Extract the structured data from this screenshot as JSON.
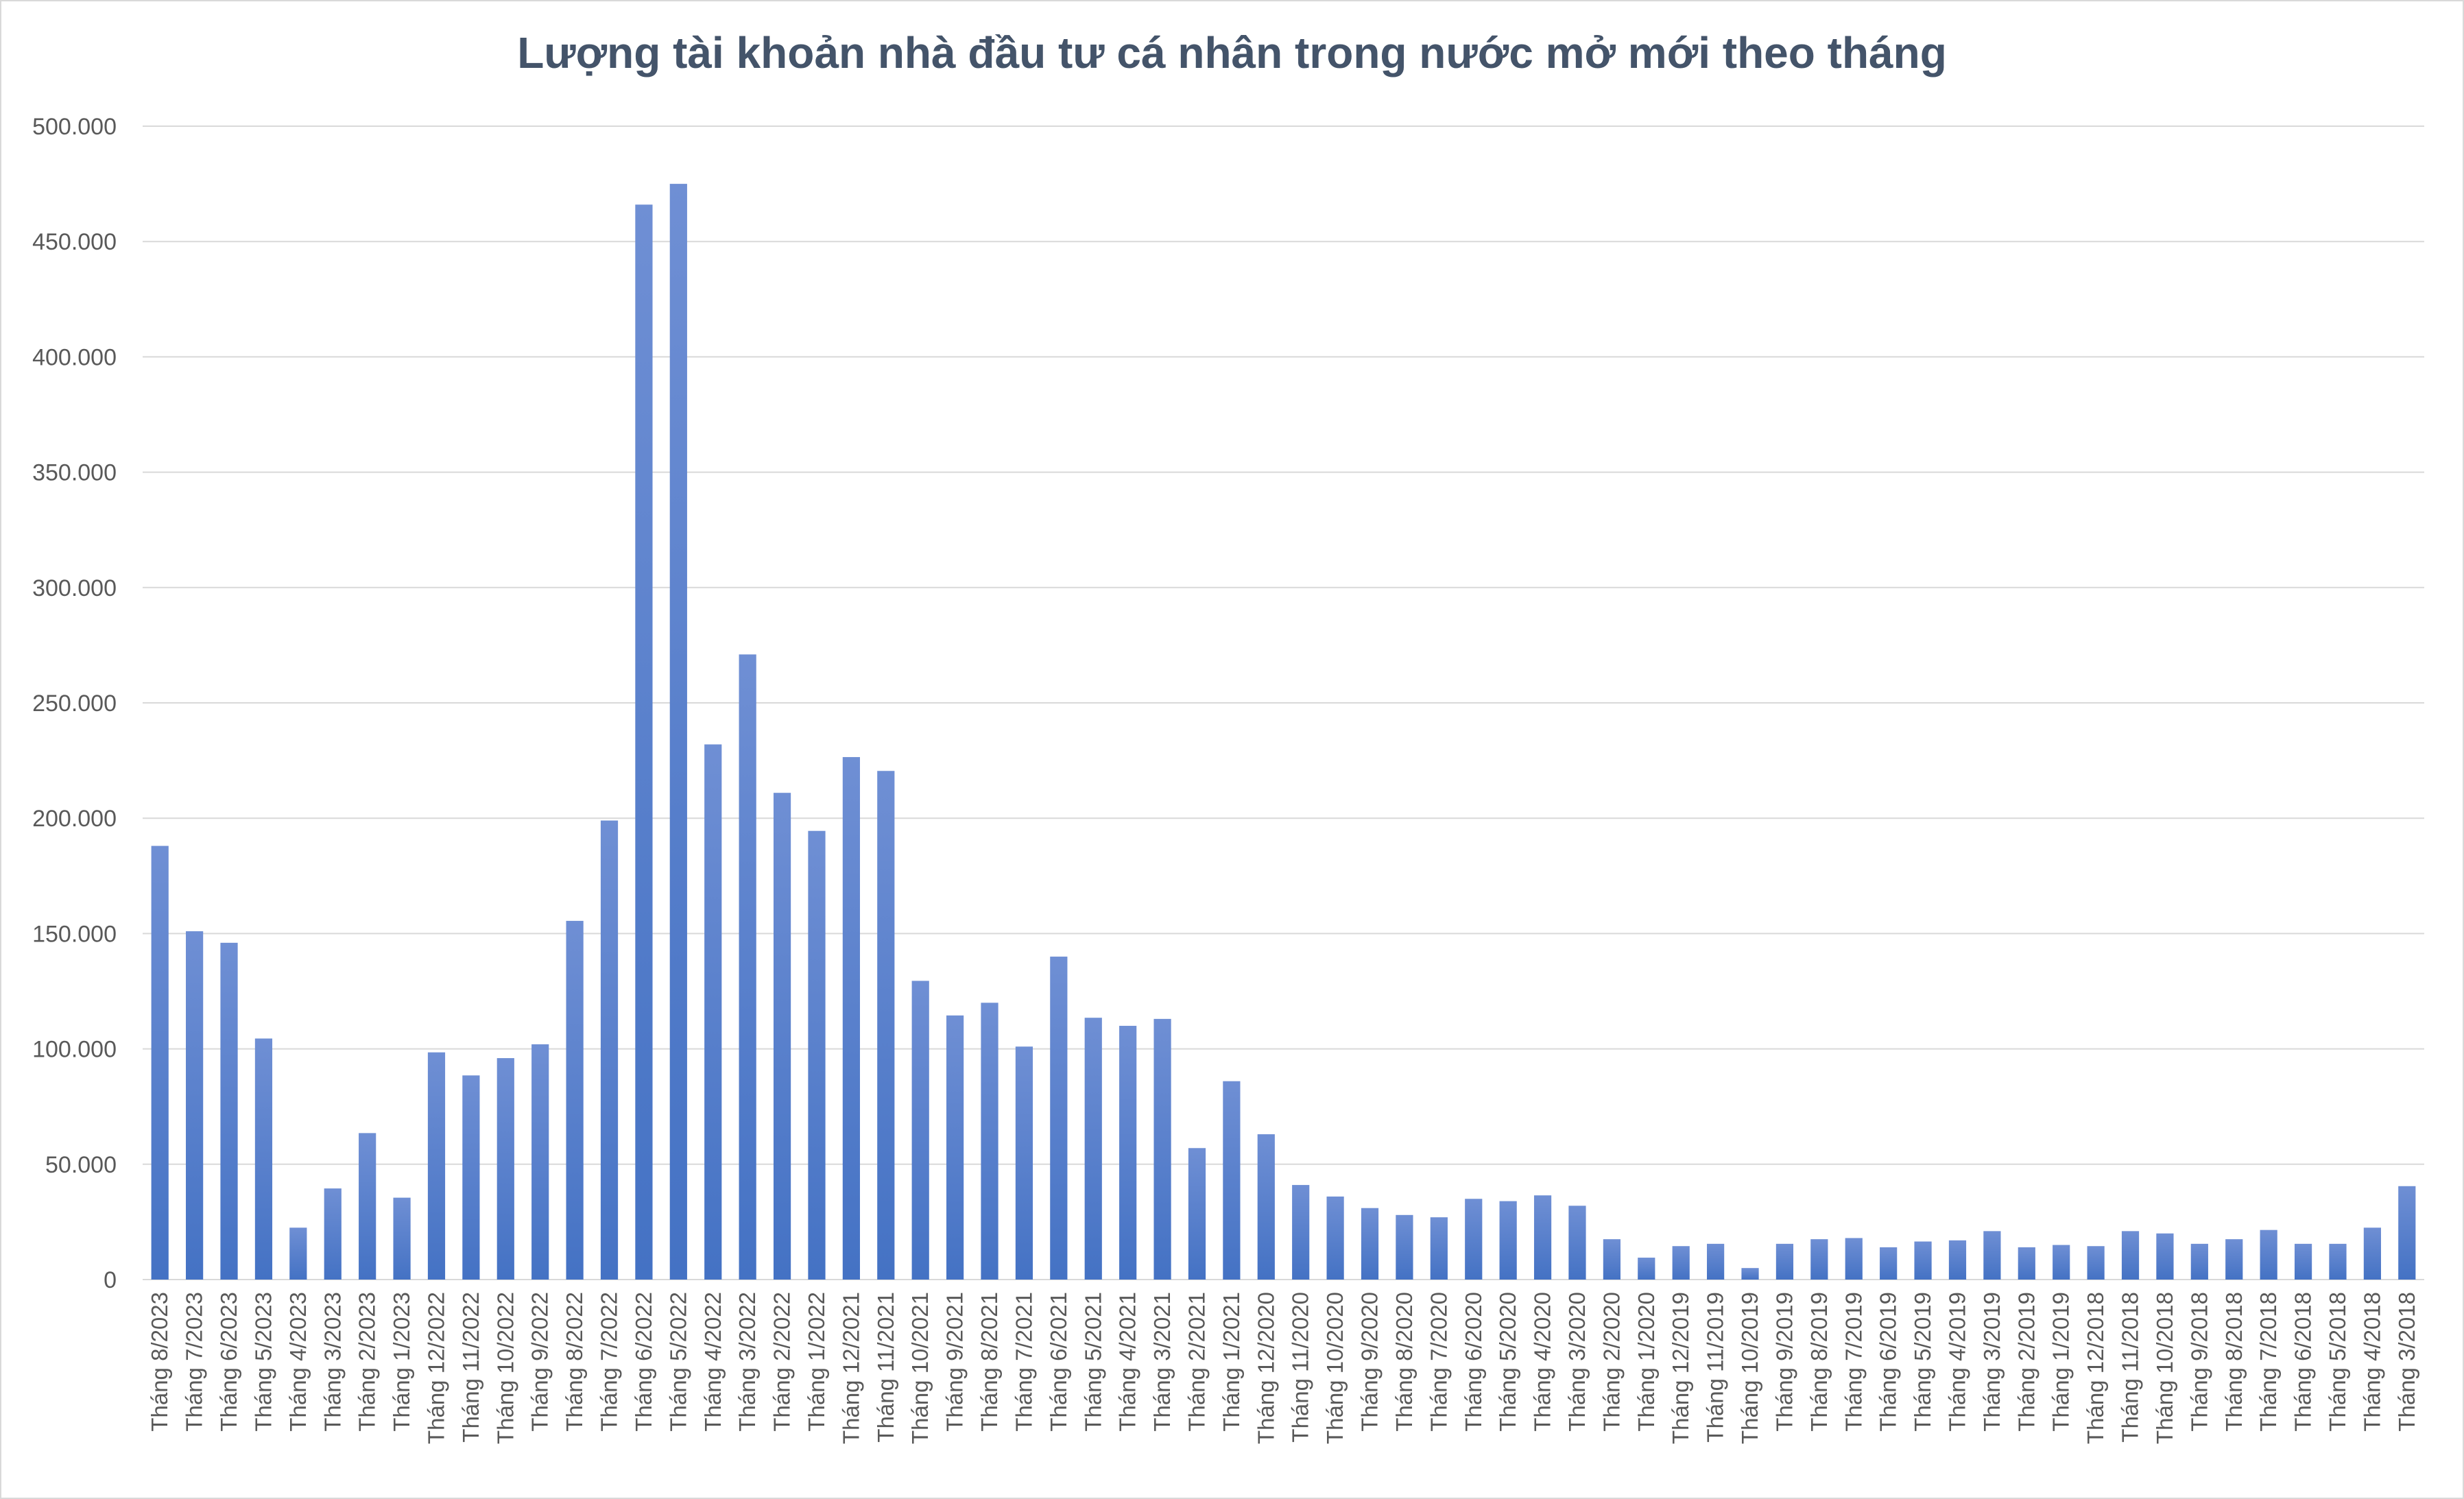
{
  "chart_data": {
    "type": "bar",
    "title": "Lượng tài khoản nhà đầu tư cá nhân trong nước mở mới theo tháng",
    "xlabel": "",
    "ylabel": "",
    "ylim": [
      0,
      500000
    ],
    "yticks": [
      0,
      50000,
      100000,
      150000,
      200000,
      250000,
      300000,
      350000,
      400000,
      450000,
      500000
    ],
    "ytick_labels": [
      "0",
      "50.000",
      "100.000",
      "150.000",
      "200.000",
      "250.000",
      "300.000",
      "350.000",
      "400.000",
      "450.000",
      "500.000"
    ],
    "grid": true,
    "legend": "none",
    "bar_color": "#4472c4",
    "categories": [
      "Tháng 8/2023",
      "Tháng 7/2023",
      "Tháng 6/2023",
      "Tháng 5/2023",
      "Tháng 4/2023",
      "Tháng 3/2023",
      "Tháng 2/2023",
      "Tháng 1/2023",
      "Tháng 12/2022",
      "Tháng 11/2022",
      "Tháng 10/2022",
      "Tháng 9/2022",
      "Tháng 8/2022",
      "Tháng 7/2022",
      "Tháng 6/2022",
      "Tháng 5/2022",
      "Tháng 4/2022",
      "Tháng 3/2022",
      "Tháng 2/2022",
      "Tháng 1/2022",
      "Tháng 12/2021",
      "Tháng 11/2021",
      "Tháng 10/2021",
      "Tháng 9/2021",
      "Tháng 8/2021",
      "Tháng 7/2021",
      "Tháng 6/2021",
      "Tháng 5/2021",
      "Tháng 4/2021",
      "Tháng 3/2021",
      "Tháng 2/2021",
      "Tháng 1/2021",
      "Tháng 12/2020",
      "Tháng 11/2020",
      "Tháng 10/2020",
      "Tháng 9/2020",
      "Tháng 8/2020",
      "Tháng 7/2020",
      "Tháng 6/2020",
      "Tháng 5/2020",
      "Tháng 4/2020",
      "Tháng 3/2020",
      "Tháng 2/2020",
      "Tháng 1/2020",
      "Tháng 12/2019",
      "Tháng 11/2019",
      "Tháng 10/2019",
      "Tháng 9/2019",
      "Tháng 8/2019",
      "Tháng 7/2019",
      "Tháng 6/2019",
      "Tháng 5/2019",
      "Tháng 4/2019",
      "Tháng 3/2019",
      "Tháng 2/2019",
      "Tháng 1/2019",
      "Tháng 12/2018",
      "Tháng 11/2018",
      "Tháng 10/2018",
      "Tháng 9/2018",
      "Tháng 8/2018",
      "Tháng 7/2018",
      "Tháng 6/2018",
      "Tháng 5/2018",
      "Tháng 4/2018",
      "Tháng 3/2018"
    ],
    "values": [
      188000,
      151000,
      146000,
      104500,
      22500,
      39500,
      63500,
      35500,
      98500,
      88500,
      96000,
      102000,
      155500,
      199000,
      466000,
      475000,
      232000,
      271000,
      211000,
      194500,
      226500,
      220500,
      129500,
      114500,
      120000,
      101000,
      140000,
      113500,
      110000,
      113000,
      57000,
      86000,
      63000,
      41000,
      36000,
      31000,
      28000,
      27000,
      35000,
      34000,
      36500,
      32000,
      17500,
      9500,
      14500,
      15500,
      5000,
      15500,
      17500,
      18000,
      14000,
      16500,
      17000,
      21000,
      14000,
      15000,
      14500,
      21000,
      20000,
      15500,
      17500,
      21500,
      15500,
      15500,
      22500,
      40500
    ]
  }
}
